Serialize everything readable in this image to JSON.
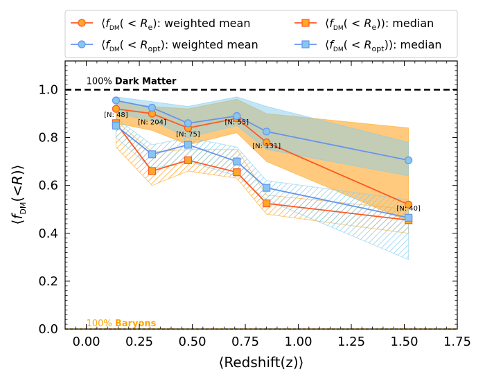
{
  "chart_data": {
    "type": "line",
    "xlabel": "⟨Redshift(z)⟩",
    "ylabel": "⟨f_DM(<R)⟩",
    "xlim": [
      -0.1,
      1.75
    ],
    "ylim": [
      0.0,
      1.12
    ],
    "xticks": [
      0.0,
      0.25,
      0.5,
      0.75,
      1.0,
      1.25,
      1.5,
      1.75
    ],
    "xtick_labels": [
      "0.00",
      "0.25",
      "0.50",
      "0.75",
      "1.00",
      "1.25",
      "1.50",
      "1.75"
    ],
    "yticks": [
      0.0,
      0.2,
      0.4,
      0.6,
      0.8,
      1.0
    ],
    "ytick_labels": [
      "0.0",
      "0.2",
      "0.4",
      "0.6",
      "0.8",
      "1.0"
    ],
    "x": [
      0.14,
      0.31,
      0.48,
      0.71,
      0.85,
      1.52
    ],
    "colors": {
      "orange": "#ff5722",
      "orange_fill": "#ffa726",
      "blue": "#6495ed",
      "blue_fill": "#87ceeb",
      "blue_marker": "#87c6f0",
      "orange_marker": "#ffa726"
    },
    "series": [
      {
        "name_prefix": "⟨f",
        "name_sub": "DM",
        "name_r": "R",
        "name_rsub": "e",
        "name_suffix": "): weighted mean",
        "marker": "circle",
        "color": "orange",
        "values": [
          0.92,
          0.9,
          0.84,
          0.88,
          0.78,
          0.52
        ],
        "upper": [
          0.95,
          0.93,
          0.92,
          0.96,
          0.9,
          0.84
        ],
        "lower": [
          0.86,
          0.83,
          0.77,
          0.82,
          0.7,
          0.45
        ]
      },
      {
        "name_prefix": "⟨f",
        "name_sub": "DM",
        "name_r": "R",
        "name_rsub": "opt",
        "name_suffix": "): weighted mean",
        "marker": "circle",
        "color": "blue",
        "values": [
          0.955,
          0.925,
          0.86,
          0.89,
          0.825,
          0.705
        ],
        "upper": [
          0.97,
          0.95,
          0.93,
          0.97,
          0.93,
          0.78
        ],
        "lower": [
          0.9,
          0.87,
          0.8,
          0.85,
          0.75,
          0.64
        ]
      },
      {
        "name_prefix": "⟨f",
        "name_sub": "DM",
        "name_r": "R",
        "name_rsub": "e",
        "name_suffix": ")): median",
        "marker": "square",
        "color": "orange",
        "values": [
          0.86,
          0.66,
          0.705,
          0.655,
          0.525,
          0.455
        ],
        "upper": [
          0.87,
          0.74,
          0.75,
          0.75,
          0.56,
          0.5
        ],
        "lower": [
          0.76,
          0.6,
          0.66,
          0.63,
          0.48,
          0.4
        ]
      },
      {
        "name_prefix": "⟨f",
        "name_sub": "DM",
        "name_r": "R",
        "name_rsub": "opt",
        "name_suffix": ")): median",
        "marker": "square",
        "color": "blue",
        "values": [
          0.85,
          0.73,
          0.77,
          0.7,
          0.59,
          0.465
        ],
        "upper": [
          0.88,
          0.77,
          0.8,
          0.76,
          0.62,
          0.54
        ],
        "lower": [
          0.8,
          0.67,
          0.7,
          0.64,
          0.54,
          0.29
        ]
      }
    ],
    "n_labels": [
      "[N: 48]",
      "[N: 204]",
      "[N: 75]",
      "[N: 55]",
      "[N: 131]",
      "[N: 40]"
    ],
    "n_label_y": [
      0.885,
      0.855,
      0.805,
      0.855,
      0.755,
      0.495
    ],
    "reference_lines": {
      "dark_matter": {
        "y": 1.0,
        "prefix": "100% ",
        "bold": "Dark Matter"
      },
      "baryons": {
        "y": 0.0,
        "prefix": "100% ",
        "bold": "Baryons"
      }
    },
    "legend_position": "top"
  }
}
